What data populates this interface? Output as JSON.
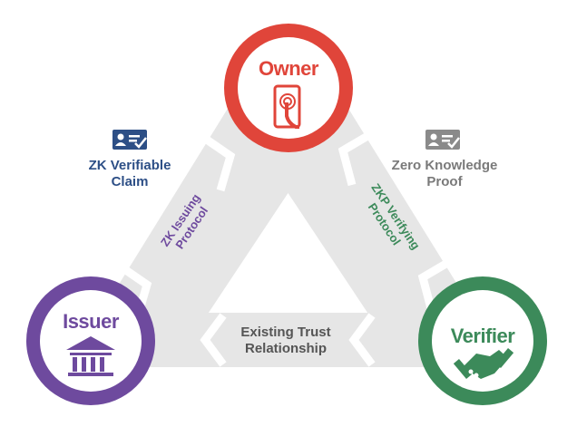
{
  "nodes": {
    "owner": {
      "title": "Owner",
      "color": "#e0453a",
      "icon": "touch-phone-icon"
    },
    "issuer": {
      "title": "Issuer",
      "color": "#6e4a9e",
      "icon": "bank-icon"
    },
    "verifier": {
      "title": "Verifier",
      "color": "#3c8a5a",
      "icon": "handshake-icon"
    }
  },
  "edges": {
    "issuing": {
      "label_line1": "ZK Issuing",
      "label_line2": "Protocol",
      "color": "#6e4a9e"
    },
    "verifying": {
      "label_line1": "ZKP Verifying",
      "label_line2": "Protocol",
      "color": "#3c8a5a"
    },
    "trust": {
      "label_line1": "Existing Trust",
      "label_line2": "Relationship",
      "color": "#555555"
    }
  },
  "side_labels": {
    "claim": {
      "line1": "ZK Verifiable",
      "line2": "Claim",
      "color": "#2d4f86",
      "icon": "verified-id-card-icon"
    },
    "proof": {
      "line1": "Zero Knowledge",
      "line2": "Proof",
      "color": "#7a7a7a",
      "icon": "verified-id-card-icon"
    }
  },
  "colors": {
    "band": "#e6e6e6",
    "chevron": "#ffffff"
  }
}
